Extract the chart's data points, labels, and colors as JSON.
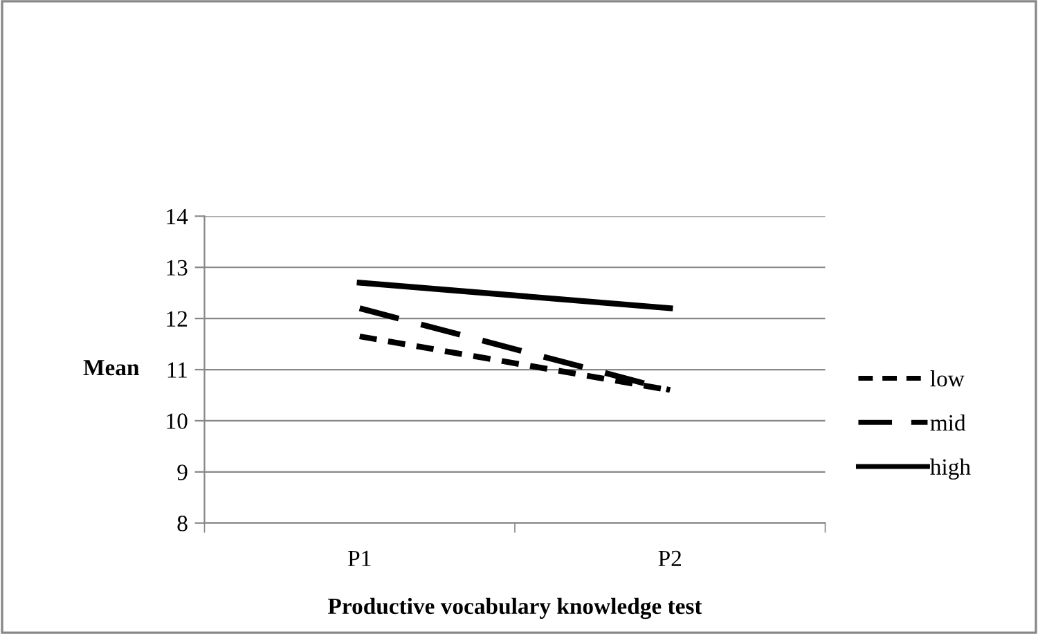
{
  "chart_data": {
    "type": "line",
    "xlabel": "Productive vocabulary knowledge test",
    "ylabel": "Mean",
    "categories": [
      "P1",
      "P2"
    ],
    "series": [
      {
        "name": "low",
        "color": "#000000",
        "values": [
          11.65,
          10.6
        ],
        "line_style": "dotted"
      },
      {
        "name": "mid",
        "color": "#000000",
        "values": [
          12.2,
          10.6
        ],
        "line_style": "dashed"
      },
      {
        "name": "high",
        "color": "#000000",
        "values": [
          12.7,
          12.2
        ],
        "line_style": "solid"
      }
    ],
    "ylim": [
      8,
      14
    ],
    "yticks": [
      8,
      9,
      10,
      11,
      12,
      13,
      14
    ],
    "grid": "y",
    "legend": "right",
    "marker": "none"
  }
}
